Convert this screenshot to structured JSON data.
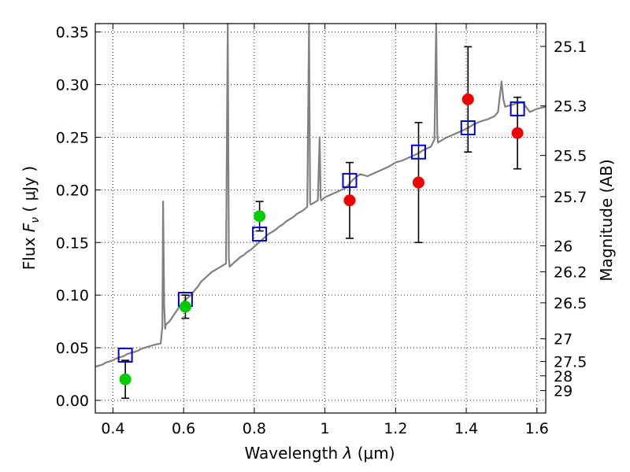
{
  "chart_data": {
    "type": "scatter",
    "xlabel_prefix": "Wavelength",
    "xlabel_var": "λ",
    "xlabel_unit": "(μm)",
    "ylabel_prefix": "Flux",
    "ylabel_var": "F",
    "ylabel_sub": "ν",
    "ylabel_unit": "( μJy )",
    "y2label": "Magnitude (AB)",
    "xlim": [
      0.35,
      1.625
    ],
    "ylim": [
      -0.012,
      0.358
    ],
    "grid": true,
    "x_ticks": [
      0.4,
      0.6,
      0.8,
      1.0,
      1.2,
      1.4,
      1.6
    ],
    "x_tick_labels": [
      "0.4",
      "0.6",
      "0.8",
      "1",
      "1.2",
      "1.4",
      "1.6"
    ],
    "y_ticks": [
      0.0,
      0.05,
      0.1,
      0.15,
      0.2,
      0.25,
      0.3,
      0.35
    ],
    "y_tick_labels": [
      "0.00",
      "0.05",
      "0.10",
      "0.15",
      "0.20",
      "0.25",
      "0.30",
      "0.35"
    ],
    "mag_ticks": [
      {
        "label": "25.1",
        "flux": 0.3363
      },
      {
        "label": "25.3",
        "flux": 0.2798
      },
      {
        "label": "25.5",
        "flux": 0.2327
      },
      {
        "label": "25.7",
        "flux": 0.1936
      },
      {
        "label": "26",
        "flux": 0.1469
      },
      {
        "label": "26.2",
        "flux": 0.1221
      },
      {
        "label": "26.5",
        "flux": 0.0927
      },
      {
        "label": "27",
        "flux": 0.0585
      },
      {
        "label": "27.5",
        "flux": 0.0369
      },
      {
        "label": "28",
        "flux": 0.0233
      },
      {
        "label": "29",
        "flux": 0.0093
      }
    ],
    "model_spectrum": {
      "color": "#808080",
      "points": [
        [
          0.35,
          0.032
        ],
        [
          0.36,
          0.033
        ],
        [
          0.37,
          0.034
        ],
        [
          0.38,
          0.036
        ],
        [
          0.39,
          0.037
        ],
        [
          0.4,
          0.038
        ],
        [
          0.41,
          0.04
        ],
        [
          0.42,
          0.041
        ],
        [
          0.43,
          0.042
        ],
        [
          0.44,
          0.044
        ],
        [
          0.45,
          0.045
        ],
        [
          0.46,
          0.046
        ],
        [
          0.47,
          0.047
        ],
        [
          0.48,
          0.049
        ],
        [
          0.49,
          0.05
        ],
        [
          0.5,
          0.051
        ],
        [
          0.52,
          0.053
        ],
        [
          0.535,
          0.054
        ],
        [
          0.54,
          0.07
        ],
        [
          0.542,
          0.189
        ],
        [
          0.545,
          0.09
        ],
        [
          0.548,
          0.068
        ],
        [
          0.55,
          0.072
        ],
        [
          0.56,
          0.075
        ],
        [
          0.57,
          0.08
        ],
        [
          0.58,
          0.085
        ],
        [
          0.59,
          0.09
        ],
        [
          0.6,
          0.094
        ],
        [
          0.61,
          0.097
        ],
        [
          0.62,
          0.1
        ],
        [
          0.63,
          0.104
        ],
        [
          0.64,
          0.108
        ],
        [
          0.65,
          0.113
        ],
        [
          0.66,
          0.116
        ],
        [
          0.67,
          0.119
        ],
        [
          0.68,
          0.122
        ],
        [
          0.69,
          0.124
        ],
        [
          0.7,
          0.126
        ],
        [
          0.71,
          0.128
        ],
        [
          0.72,
          0.13
        ],
        [
          0.725,
          0.358
        ],
        [
          0.728,
          0.135
        ],
        [
          0.73,
          0.127
        ],
        [
          0.74,
          0.13
        ],
        [
          0.75,
          0.133
        ],
        [
          0.76,
          0.136
        ],
        [
          0.77,
          0.138
        ],
        [
          0.78,
          0.141
        ],
        [
          0.79,
          0.143
        ],
        [
          0.8,
          0.146
        ],
        [
          0.81,
          0.149
        ],
        [
          0.82,
          0.152
        ],
        [
          0.83,
          0.155
        ],
        [
          0.84,
          0.158
        ],
        [
          0.85,
          0.16
        ],
        [
          0.86,
          0.162
        ],
        [
          0.87,
          0.165
        ],
        [
          0.88,
          0.167
        ],
        [
          0.89,
          0.17
        ],
        [
          0.9,
          0.172
        ],
        [
          0.91,
          0.174
        ],
        [
          0.92,
          0.177
        ],
        [
          0.93,
          0.179
        ],
        [
          0.94,
          0.181
        ],
        [
          0.95,
          0.184
        ],
        [
          0.955,
          0.358
        ],
        [
          0.958,
          0.188
        ],
        [
          0.96,
          0.186
        ],
        [
          0.97,
          0.188
        ],
        [
          0.98,
          0.19
        ],
        [
          0.985,
          0.25
        ],
        [
          0.988,
          0.192
        ],
        [
          0.99,
          0.19
        ],
        [
          1.0,
          0.193
        ],
        [
          1.02,
          0.196
        ],
        [
          1.04,
          0.199
        ],
        [
          1.06,
          0.202
        ],
        [
          1.08,
          0.21
        ],
        [
          1.1,
          0.215
        ],
        [
          1.12,
          0.213
        ],
        [
          1.14,
          0.216
        ],
        [
          1.16,
          0.219
        ],
        [
          1.18,
          0.222
        ],
        [
          1.2,
          0.226
        ],
        [
          1.22,
          0.228
        ],
        [
          1.24,
          0.231
        ],
        [
          1.26,
          0.234
        ],
        [
          1.28,
          0.238
        ],
        [
          1.3,
          0.241
        ],
        [
          1.31,
          0.248
        ],
        [
          1.315,
          0.358
        ],
        [
          1.318,
          0.252
        ],
        [
          1.32,
          0.245
        ],
        [
          1.34,
          0.249
        ],
        [
          1.36,
          0.252
        ],
        [
          1.38,
          0.255
        ],
        [
          1.4,
          0.258
        ],
        [
          1.42,
          0.262
        ],
        [
          1.44,
          0.265
        ],
        [
          1.46,
          0.267
        ],
        [
          1.48,
          0.27
        ],
        [
          1.49,
          0.274
        ],
        [
          1.5,
          0.303
        ],
        [
          1.505,
          0.286
        ],
        [
          1.51,
          0.279
        ],
        [
          1.52,
          0.28
        ],
        [
          1.54,
          0.282
        ],
        [
          1.56,
          0.283
        ],
        [
          1.58,
          0.274
        ],
        [
          1.6,
          0.277
        ],
        [
          1.625,
          0.279
        ]
      ]
    },
    "model_photometry": {
      "color": "#0000cc",
      "points": [
        [
          0.435,
          0.043
        ],
        [
          0.605,
          0.096
        ],
        [
          0.815,
          0.158
        ],
        [
          1.07,
          0.209
        ],
        [
          1.265,
          0.236
        ],
        [
          1.405,
          0.259
        ],
        [
          1.545,
          0.277
        ]
      ]
    },
    "detections_green": {
      "color": "#00cc00",
      "points": [
        {
          "x": 0.435,
          "y": 0.02,
          "err": 0.018
        },
        {
          "x": 0.605,
          "y": 0.089,
          "err": 0.011
        },
        {
          "x": 0.815,
          "y": 0.175,
          "err": 0.014
        }
      ]
    },
    "detections_red": {
      "color": "#ee0000",
      "points": [
        {
          "x": 1.07,
          "y": 0.19,
          "err": 0.036
        },
        {
          "x": 1.265,
          "y": 0.207,
          "err": 0.057
        },
        {
          "x": 1.405,
          "y": 0.286,
          "err": 0.05
        },
        {
          "x": 1.545,
          "y": 0.254,
          "err": 0.034
        }
      ]
    }
  }
}
